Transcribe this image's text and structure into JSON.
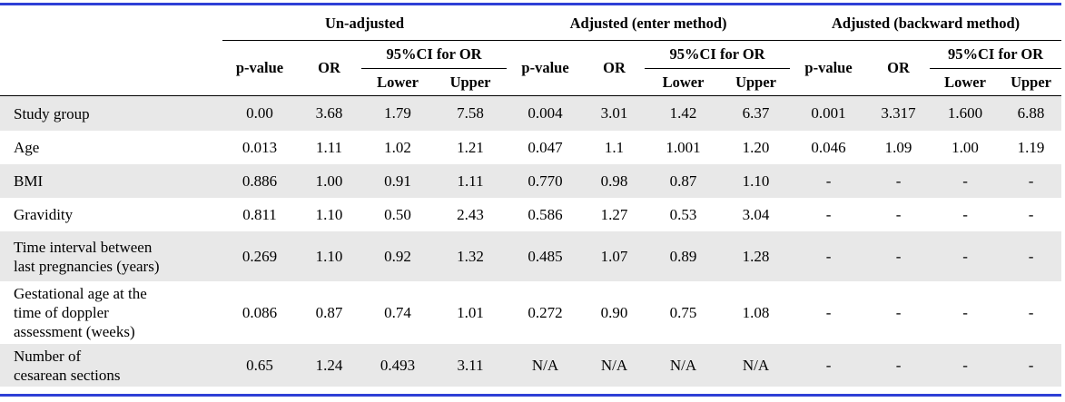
{
  "header": {
    "groups": [
      "Un-adjusted",
      "Adjusted (enter method)",
      "Adjusted (backward method)"
    ],
    "columns": [
      "p-value",
      "OR",
      "95%CI for OR"
    ],
    "ci_columns": [
      "Lower",
      "Upper"
    ]
  },
  "rows": [
    {
      "label": [
        "Study group"
      ],
      "values": [
        "0.00",
        "3.68",
        "1.79",
        "7.58",
        "0.004",
        "3.01",
        "1.42",
        "6.37",
        "0.001",
        "3.317",
        "1.600",
        "6.88"
      ]
    },
    {
      "label": [
        "Age"
      ],
      "values": [
        "0.013",
        "1.11",
        "1.02",
        "1.21",
        "0.047",
        "1.1",
        "1.001",
        "1.20",
        "0.046",
        "1.09",
        "1.00",
        "1.19"
      ]
    },
    {
      "label": [
        "BMI"
      ],
      "values": [
        "0.886",
        "1.00",
        "0.91",
        "1.11",
        "0.770",
        "0.98",
        "0.87",
        "1.10",
        "-",
        "-",
        "-",
        "-"
      ]
    },
    {
      "label": [
        "Gravidity"
      ],
      "values": [
        "0.811",
        "1.10",
        "0.50",
        "2.43",
        "0.586",
        "1.27",
        "0.53",
        "3.04",
        "-",
        "-",
        "-",
        "-"
      ]
    },
    {
      "label": [
        "Time interval between",
        "last pregnancies (years)"
      ],
      "values": [
        "0.269",
        "1.10",
        "0.92",
        "1.32",
        "0.485",
        "1.07",
        "0.89",
        "1.28",
        "-",
        "-",
        "-",
        "-"
      ]
    },
    {
      "label": [
        "Gestational age at the",
        "time of doppler",
        "assessment (weeks)"
      ],
      "values": [
        "0.086",
        "0.87",
        "0.74",
        "1.01",
        "0.272",
        "0.90",
        "0.75",
        "1.08",
        "-",
        "-",
        "-",
        "-"
      ]
    },
    {
      "label": [
        "Number of",
        "cesarean sections"
      ],
      "values": [
        "0.65",
        "1.24",
        "0.493",
        "3.11",
        "N/A",
        "N/A",
        "N/A",
        "N/A",
        "-",
        "-",
        "-",
        "-"
      ]
    }
  ]
}
